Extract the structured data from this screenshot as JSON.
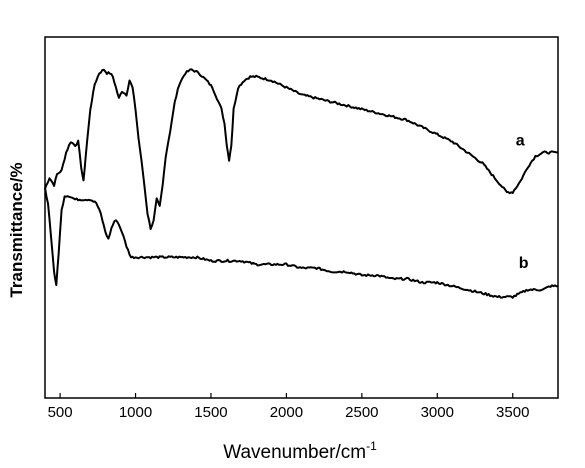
{
  "chart_data": {
    "type": "line",
    "xlabel": "Wavenumber/cm",
    "xlabel_superscript": "-1",
    "ylabel": "Transmittance/%",
    "xlim": [
      400,
      3800
    ],
    "ylim": [
      0,
      100
    ],
    "x_ticks": [
      500,
      1000,
      1500,
      2000,
      2500,
      3000,
      3500
    ],
    "grid": false,
    "series": [
      {
        "name": "a",
        "points": [
          [
            400,
            58
          ],
          [
            430,
            61
          ],
          [
            460,
            59
          ],
          [
            480,
            62
          ],
          [
            510,
            63
          ],
          [
            540,
            68
          ],
          [
            570,
            71
          ],
          [
            600,
            70
          ],
          [
            620,
            71
          ],
          [
            640,
            64
          ],
          [
            655,
            60
          ],
          [
            670,
            67
          ],
          [
            700,
            80
          ],
          [
            730,
            87
          ],
          [
            760,
            90
          ],
          [
            790,
            91
          ],
          [
            810,
            90
          ],
          [
            830,
            90
          ],
          [
            850,
            89
          ],
          [
            870,
            86
          ],
          [
            890,
            83
          ],
          [
            910,
            85
          ],
          [
            940,
            84
          ],
          [
            960,
            88
          ],
          [
            980,
            86
          ],
          [
            1000,
            80
          ],
          [
            1020,
            72
          ],
          [
            1050,
            62
          ],
          [
            1080,
            51
          ],
          [
            1100,
            47
          ],
          [
            1120,
            49
          ],
          [
            1140,
            55
          ],
          [
            1160,
            53
          ],
          [
            1180,
            59
          ],
          [
            1200,
            67
          ],
          [
            1230,
            74
          ],
          [
            1260,
            82
          ],
          [
            1290,
            87
          ],
          [
            1330,
            90
          ],
          [
            1370,
            91
          ],
          [
            1420,
            90
          ],
          [
            1470,
            88
          ],
          [
            1510,
            86
          ],
          [
            1540,
            83
          ],
          [
            1570,
            80
          ],
          [
            1590,
            76
          ],
          [
            1605,
            70
          ],
          [
            1620,
            66
          ],
          [
            1635,
            70
          ],
          [
            1650,
            80
          ],
          [
            1680,
            86
          ],
          [
            1720,
            88
          ],
          [
            1760,
            89
          ],
          [
            1800,
            89
          ],
          [
            1900,
            88
          ],
          [
            2000,
            86
          ],
          [
            2100,
            84
          ],
          [
            2200,
            83
          ],
          [
            2300,
            82
          ],
          [
            2400,
            81
          ],
          [
            2500,
            80
          ],
          [
            2600,
            79
          ],
          [
            2700,
            78
          ],
          [
            2800,
            77
          ],
          [
            2900,
            75
          ],
          [
            3000,
            73
          ],
          [
            3100,
            71
          ],
          [
            3200,
            68
          ],
          [
            3300,
            65
          ],
          [
            3400,
            60
          ],
          [
            3460,
            57
          ],
          [
            3500,
            57
          ],
          [
            3550,
            60
          ],
          [
            3600,
            64
          ],
          [
            3650,
            67
          ],
          [
            3700,
            68
          ],
          [
            3750,
            68
          ],
          [
            3800,
            68
          ]
        ]
      },
      {
        "name": "b",
        "points": [
          [
            400,
            58
          ],
          [
            420,
            54
          ],
          [
            440,
            45
          ],
          [
            460,
            35
          ],
          [
            475,
            31
          ],
          [
            490,
            40
          ],
          [
            510,
            52
          ],
          [
            530,
            56
          ],
          [
            560,
            56
          ],
          [
            600,
            55
          ],
          [
            650,
            55
          ],
          [
            700,
            55
          ],
          [
            740,
            54
          ],
          [
            770,
            51
          ],
          [
            800,
            46
          ],
          [
            820,
            44
          ],
          [
            840,
            47
          ],
          [
            860,
            49
          ],
          [
            880,
            49
          ],
          [
            910,
            46
          ],
          [
            940,
            42
          ],
          [
            970,
            39
          ],
          [
            1000,
            39
          ],
          [
            1100,
            39
          ],
          [
            1200,
            39
          ],
          [
            1300,
            39
          ],
          [
            1400,
            39
          ],
          [
            1500,
            38
          ],
          [
            1600,
            38
          ],
          [
            1700,
            38
          ],
          [
            1800,
            37
          ],
          [
            1900,
            37
          ],
          [
            2000,
            37
          ],
          [
            2100,
            36
          ],
          [
            2200,
            36
          ],
          [
            2300,
            35
          ],
          [
            2400,
            35
          ],
          [
            2500,
            34
          ],
          [
            2600,
            34
          ],
          [
            2700,
            33
          ],
          [
            2800,
            33
          ],
          [
            2900,
            32
          ],
          [
            3000,
            32
          ],
          [
            3100,
            31
          ],
          [
            3200,
            30
          ],
          [
            3300,
            29
          ],
          [
            3400,
            28
          ],
          [
            3450,
            28
          ],
          [
            3500,
            28
          ],
          [
            3550,
            29
          ],
          [
            3600,
            30
          ],
          [
            3650,
            30
          ],
          [
            3700,
            30
          ],
          [
            3750,
            31
          ],
          [
            3800,
            31
          ]
        ]
      }
    ]
  }
}
